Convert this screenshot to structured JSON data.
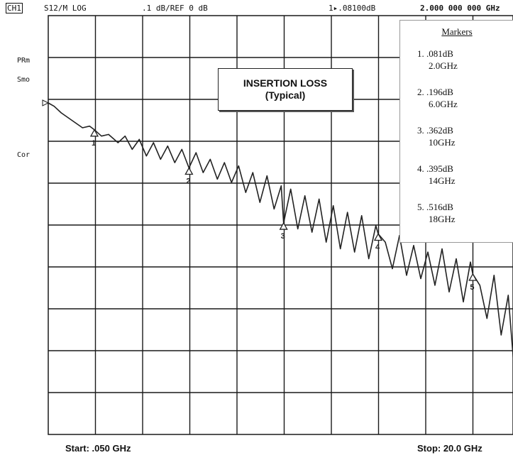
{
  "header": {
    "channel": "CH1",
    "measurement": "S12/M LOG",
    "scale": ".1 dB/REF 0 dB",
    "marker_readout": "1▸.08100dB",
    "marker_freq": "2.000 000 000 GHz"
  },
  "side_labels": {
    "prm": "PRm",
    "smo": "Smo",
    "cor": "Cor"
  },
  "chart_data": {
    "type": "line",
    "title": "INSERTION LOSS",
    "subtitle": "(Typical)",
    "xlabel": "",
    "ylabel": "",
    "xlim": [
      0.05,
      20.0
    ],
    "ylim": [
      -1.0,
      0.0
    ],
    "grid": true,
    "start_label": "Start: .050 GHz",
    "stop_label": "Stop: 20.0 GHz",
    "series": [
      {
        "x": [
          0.05,
          0.3,
          0.6,
          0.9,
          1.2,
          1.5,
          1.8,
          2.0,
          2.3,
          2.6,
          3.0,
          3.3,
          3.6,
          3.9,
          4.2,
          4.5,
          4.8,
          5.1,
          5.4,
          5.7,
          6.0,
          6.3,
          6.6,
          6.9,
          7.2,
          7.5,
          7.8,
          8.1,
          8.4,
          8.7,
          9.0,
          9.3,
          9.6,
          9.9,
          10.0,
          10.3,
          10.6,
          10.9,
          11.2,
          11.5,
          11.8,
          12.1,
          12.4,
          12.7,
          13.0,
          13.3,
          13.6,
          13.9,
          14.0,
          14.3,
          14.6,
          14.9,
          15.2,
          15.5,
          15.8,
          16.1,
          16.4,
          16.7,
          17.0,
          17.3,
          17.6,
          17.9,
          18.0,
          18.3,
          18.6,
          18.9,
          19.2,
          19.5,
          19.8,
          20.0
        ],
        "values": [
          0.0,
          -0.01,
          -0.03,
          -0.045,
          -0.06,
          -0.075,
          -0.07,
          -0.081,
          -0.1,
          -0.095,
          -0.12,
          -0.1,
          -0.14,
          -0.11,
          -0.16,
          -0.12,
          -0.17,
          -0.13,
          -0.18,
          -0.14,
          -0.196,
          -0.15,
          -0.21,
          -0.17,
          -0.23,
          -0.18,
          -0.24,
          -0.19,
          -0.27,
          -0.21,
          -0.3,
          -0.22,
          -0.32,
          -0.25,
          -0.362,
          -0.26,
          -0.38,
          -0.28,
          -0.39,
          -0.29,
          -0.42,
          -0.31,
          -0.44,
          -0.33,
          -0.45,
          -0.34,
          -0.47,
          -0.37,
          -0.395,
          -0.42,
          -0.5,
          -0.4,
          -0.52,
          -0.43,
          -0.53,
          -0.45,
          -0.55,
          -0.44,
          -0.57,
          -0.47,
          -0.6,
          -0.48,
          -0.516,
          -0.55,
          -0.65,
          -0.52,
          -0.7,
          -0.58,
          -0.85,
          -0.6
        ]
      }
    ],
    "markers": [
      {
        "num": "1",
        "x": 2.0,
        "value": -0.081,
        "label": "1.  .081dB",
        "freq": "2.0GHz"
      },
      {
        "num": "2",
        "x": 6.0,
        "value": -0.196,
        "label": "2.  .196dB",
        "freq": "6.0GHz"
      },
      {
        "num": "3",
        "x": 10.0,
        "value": -0.362,
        "label": "3.  .362dB",
        "freq": "10GHz"
      },
      {
        "num": "4",
        "x": 14.0,
        "value": -0.395,
        "label": "4.  .395dB",
        "freq": "14GHz"
      },
      {
        "num": "5",
        "x": 18.0,
        "value": -0.516,
        "label": "5.  .516dB",
        "freq": "18GHz"
      }
    ],
    "markers_title": "Markers"
  },
  "colors": {
    "trace": "#222222",
    "grid": "#1a1a1a",
    "background": "#ffffff"
  }
}
